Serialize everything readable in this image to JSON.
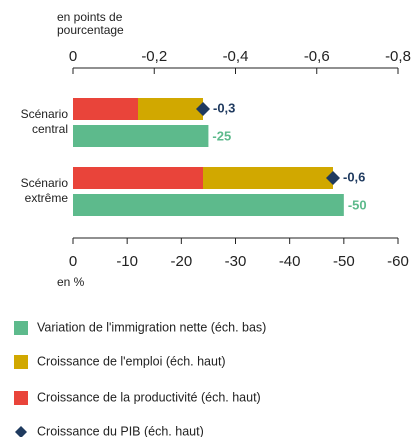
{
  "chart_data": {
    "type": "bar",
    "orientation": "horizontal",
    "categories": [
      "Scénario central",
      "Scénario extrême"
    ],
    "x2_label": "en points de pourcentage",
    "x_label": "en %",
    "xlim": [
      0,
      -60
    ],
    "xticks": [
      0,
      -10,
      -20,
      -30,
      -40,
      -50,
      -60
    ],
    "x2lim": [
      0,
      -0.8
    ],
    "x2ticks": [
      0,
      {
        "value": -0.2,
        "label": "-0,2"
      },
      {
        "value": -0.4,
        "label": "-0,4"
      },
      {
        "value": -0.6,
        "label": "-0,6"
      },
      {
        "value": -0.8,
        "label": "-0,8"
      }
    ],
    "series": [
      {
        "name": "Variation de l'immigration nette (éch. bas)",
        "color": "#5dba8c",
        "axis": "x",
        "values": [
          -25,
          -50
        ],
        "value_labels": [
          "-25",
          "-50"
        ]
      },
      {
        "name": "Croissance de l'emploi (éch. haut)",
        "color": "#d1a800",
        "axis": "x2",
        "values": [
          -0.16,
          -0.32
        ]
      },
      {
        "name": "Croissance de la productivité (éch. haut)",
        "color": "#e9443a",
        "axis": "x2",
        "values": [
          -0.16,
          -0.32
        ]
      },
      {
        "name": "Croissance du PIB (éch. haut)",
        "color": "#1f3a5f",
        "axis": "x2",
        "marker": "diamond",
        "values": [
          -0.32,
          -0.64
        ],
        "value_labels": [
          "-0,3",
          "-0,6"
        ]
      }
    ]
  }
}
